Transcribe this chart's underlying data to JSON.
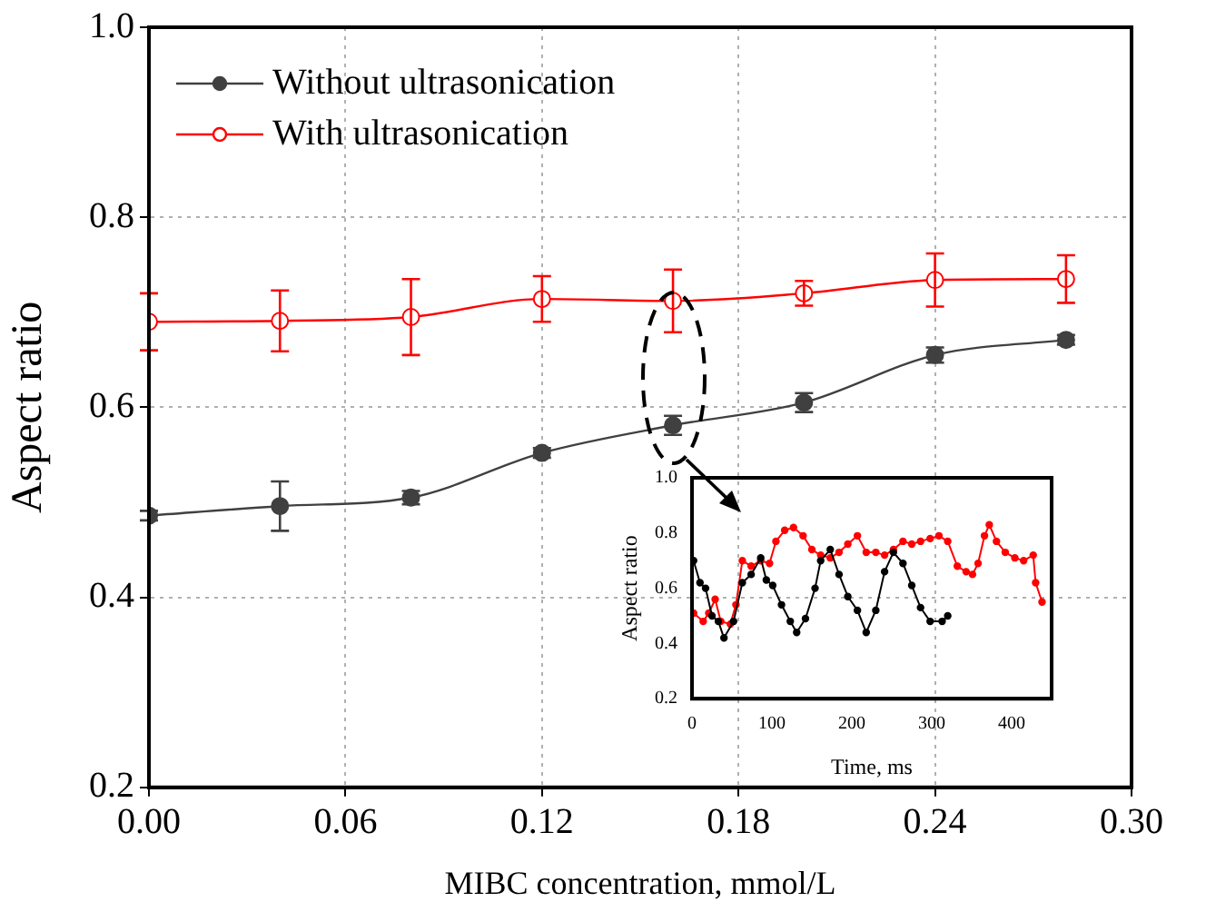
{
  "chart_data": [
    {
      "type": "line",
      "xlabel": "MIBC concentration, mmol/L",
      "ylabel": "Aspect ratio",
      "x": [
        0,
        0.04,
        0.08,
        0.12,
        0.16,
        0.2,
        0.24,
        0.28
      ],
      "series": [
        {
          "name": "Without ultrasonication",
          "color": "#404040",
          "values": [
            0.486,
            0.496,
            0.505,
            0.552,
            0.581,
            0.605,
            0.655,
            0.671
          ],
          "errors": [
            0.005,
            0.026,
            0.007,
            0.005,
            0.01,
            0.01,
            0.008,
            0.005
          ]
        },
        {
          "name": "With ultrasonication",
          "color": "#ff0000",
          "values": [
            0.69,
            0.691,
            0.695,
            0.714,
            0.712,
            0.72,
            0.734,
            0.735
          ],
          "errors": [
            0.03,
            0.032,
            0.04,
            0.024,
            0.033,
            0.013,
            0.028,
            0.025
          ]
        }
      ],
      "xlim": [
        0,
        0.3
      ],
      "xticks": [
        {
          "value": 0,
          "label": "0.00"
        },
        0.06,
        0.12,
        0.18,
        0.24,
        {
          "value": 0.3,
          "label": "0.30"
        }
      ],
      "ylim": [
        0.2,
        1.0
      ],
      "yticks": [
        0.2,
        0.4,
        0.6,
        0.8,
        {
          "value": 1.0,
          "label": "1.0"
        }
      ],
      "grid": true,
      "legend": "top left",
      "marker": "circle"
    },
    {
      "type": "line",
      "xlabel": "Time, ms",
      "ylabel": "Aspect ratio",
      "series": [
        {
          "color": "#000000",
          "x": [
            2,
            10,
            17,
            25,
            33,
            40,
            52,
            63,
            74,
            86,
            93,
            101,
            112,
            123,
            131,
            142,
            154,
            161,
            173,
            184,
            195,
            207,
            218,
            230,
            241,
            252,
            264,
            275,
            286,
            298,
            313,
            320
          ],
          "values": [
            0.7,
            0.62,
            0.6,
            0.5,
            0.48,
            0.42,
            0.48,
            0.62,
            0.65,
            0.71,
            0.63,
            0.61,
            0.54,
            0.48,
            0.44,
            0.49,
            0.6,
            0.7,
            0.74,
            0.65,
            0.57,
            0.52,
            0.44,
            0.52,
            0.66,
            0.73,
            0.69,
            0.61,
            0.53,
            0.48,
            0.48,
            0.5
          ]
        },
        {
          "color": "#ff0000",
          "x": [
            2,
            14,
            21,
            29,
            36,
            48,
            55,
            63,
            74,
            86,
            97,
            105,
            116,
            127,
            139,
            150,
            161,
            173,
            184,
            195,
            207,
            218,
            230,
            241,
            252,
            264,
            275,
            286,
            298,
            309,
            320,
            332,
            343,
            351,
            358,
            366,
            372,
            381,
            392,
            404,
            415,
            427,
            430,
            438
          ],
          "values": [
            0.51,
            0.48,
            0.51,
            0.56,
            0.48,
            0.47,
            0.54,
            0.7,
            0.68,
            0.7,
            0.69,
            0.77,
            0.81,
            0.82,
            0.79,
            0.74,
            0.72,
            0.71,
            0.73,
            0.76,
            0.79,
            0.73,
            0.73,
            0.72,
            0.74,
            0.77,
            0.76,
            0.77,
            0.78,
            0.79,
            0.77,
            0.68,
            0.66,
            0.65,
            0.69,
            0.79,
            0.83,
            0.77,
            0.73,
            0.71,
            0.7,
            0.72,
            0.62,
            0.55
          ]
        }
      ],
      "xlim": [
        0,
        450
      ],
      "xticks": [
        0,
        100,
        200,
        300,
        400
      ],
      "ylim": [
        0.2,
        1.0
      ],
      "yticks": [
        0.2,
        0.4,
        0.6,
        0.8,
        {
          "value": 1.0,
          "label": "1.0"
        }
      ],
      "marker": "circle"
    }
  ]
}
